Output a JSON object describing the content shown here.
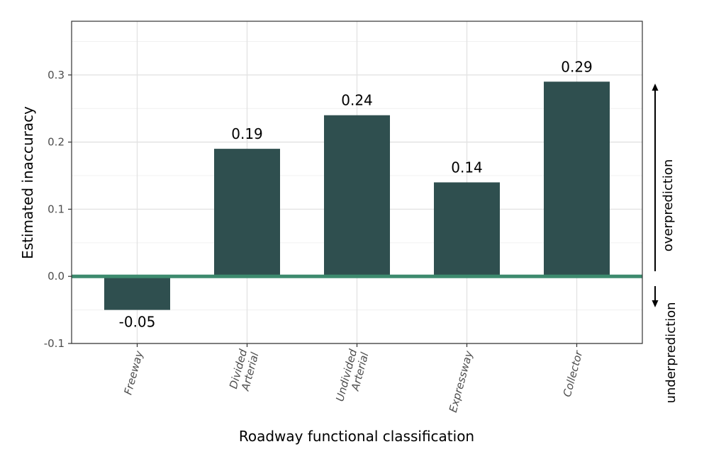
{
  "chart_data": {
    "type": "bar",
    "xlabel": "Roadway functional classification",
    "ylabel": "Estimated inaccuracy",
    "categories": [
      [
        "Freeway"
      ],
      [
        "Divided",
        "Arterial"
      ],
      [
        "Undivided",
        "Arterial"
      ],
      [
        "Expressway"
      ],
      [
        "Collector"
      ]
    ],
    "values": [
      -0.05,
      0.19,
      0.24,
      0.14,
      0.29
    ],
    "value_labels": [
      "-0.05",
      "0.19",
      "0.24",
      "0.14",
      "0.29"
    ],
    "ylim": [
      -0.1,
      0.38
    ],
    "yticks": [
      -0.1,
      0.0,
      0.1,
      0.2,
      0.3
    ],
    "ytick_labels": [
      "-0.1",
      "0.0",
      "0.1",
      "0.2",
      "0.3"
    ],
    "grid": true,
    "bar_color": "#2f4f4f",
    "zero_line_color": "#3d8a6e",
    "annotations": {
      "over": "overprediction",
      "under": "underprediction"
    }
  }
}
